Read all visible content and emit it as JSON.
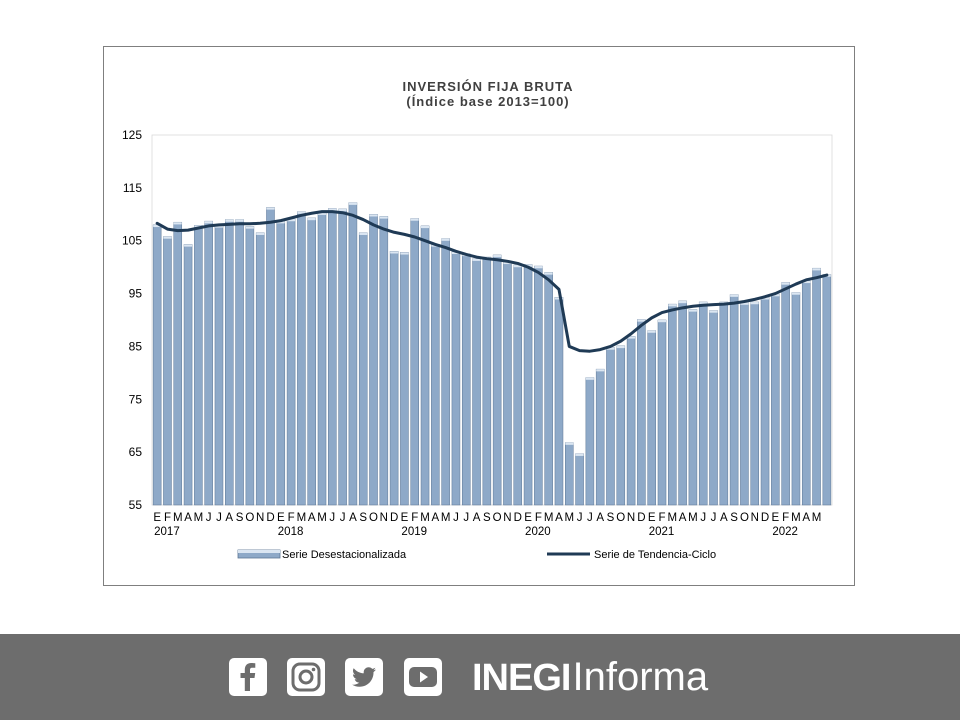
{
  "chart_data": {
    "type": "bar",
    "title": "INVERSIÓN FIJA BRUTA",
    "subtitle": "(Índice base 2013=100)",
    "yticks": [
      "125",
      "115",
      "105",
      "95",
      "85",
      "75",
      "65",
      "55"
    ],
    "ylim": [
      55,
      125
    ],
    "grid": false,
    "legend_position": "bottom",
    "month_labels": [
      "E",
      "F",
      "M",
      "A",
      "M",
      "J",
      "J",
      "A",
      "S",
      "O",
      "N",
      "D",
      "E",
      "F",
      "M",
      "A",
      "M",
      "J",
      "J",
      "A",
      "S",
      "O",
      "N",
      "D",
      "E",
      "F",
      "M",
      "A",
      "M",
      "J",
      "J",
      "A",
      "S",
      "O",
      "N",
      "D",
      "E",
      "F",
      "M",
      "A",
      "M",
      "J",
      "J",
      "A",
      "S",
      "O",
      "N",
      "D",
      "E",
      "F",
      "M",
      "A",
      "M",
      "J",
      "J",
      "A",
      "S",
      "O",
      "N",
      "D",
      "E",
      "F",
      "M",
      "A",
      "M"
    ],
    "year_labels": [
      "2017",
      "2018",
      "2019",
      "2020",
      "2021",
      "2022"
    ],
    "series": [
      {
        "name": "Serie Desestacionalizada",
        "type": "bar",
        "color": "#8ea9c8",
        "values": [
          108.0,
          105.8,
          108.5,
          104.3,
          107.9,
          108.7,
          107.9,
          109.0,
          109.0,
          107.7,
          106.5,
          111.3,
          108.7,
          109.1,
          110.5,
          109.3,
          110.3,
          111.1,
          111.0,
          112.2,
          106.5,
          110.0,
          109.6,
          103.0,
          102.8,
          109.2,
          107.8,
          104.3,
          105.4,
          102.9,
          102.5,
          101.6,
          101.9,
          102.3,
          101.0,
          100.4,
          100.5,
          100.2,
          99.0,
          94.3,
          66.8,
          64.7,
          79.1,
          80.7,
          84.8,
          85.1,
          86.9,
          90.1,
          88.0,
          90.0,
          93.0,
          93.6,
          92.0,
          93.4,
          91.8,
          93.4,
          94.8,
          93.3,
          93.4,
          94.3,
          94.9,
          97.1,
          95.2,
          97.4,
          99.8,
          98.6
        ]
      },
      {
        "name": "Serie de Tendencia-Ciclo",
        "type": "line",
        "color": "#1f3a55",
        "values": [
          108.3,
          107.2,
          106.9,
          107.0,
          107.4,
          107.8,
          108.0,
          108.1,
          108.2,
          108.2,
          108.3,
          108.5,
          108.8,
          109.3,
          109.8,
          110.2,
          110.5,
          110.5,
          110.3,
          109.8,
          109.0,
          108.0,
          107.2,
          106.6,
          106.2,
          105.7,
          105.0,
          104.3,
          103.7,
          103.0,
          102.4,
          101.9,
          101.6,
          101.4,
          101.1,
          100.7,
          100.0,
          99.0,
          97.6,
          95.8,
          85.0,
          84.2,
          84.1,
          84.4,
          85.0,
          86.0,
          87.4,
          89.0,
          90.4,
          91.4,
          91.9,
          92.3,
          92.6,
          92.8,
          92.9,
          93.0,
          93.2,
          93.5,
          93.9,
          94.4,
          95.0,
          95.9,
          96.8,
          97.6,
          98.0,
          98.5
        ]
      }
    ]
  },
  "footer": {
    "brand_strong": "INEGI",
    "brand_light": "Informa",
    "icons": [
      "facebook-icon",
      "instagram-icon",
      "twitter-icon",
      "youtube-icon"
    ],
    "background": "#6d6d6d"
  }
}
